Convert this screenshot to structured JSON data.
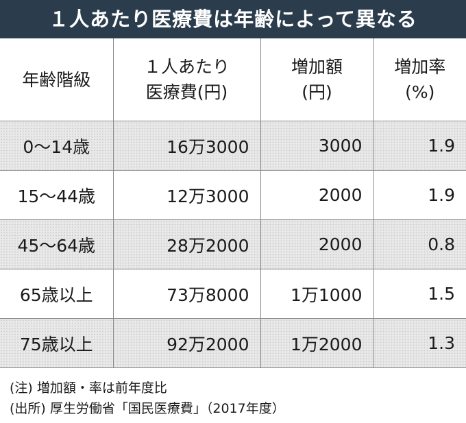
{
  "title": "１人あたり医療費は年齢によって異なる",
  "table": {
    "headers": [
      {
        "line1": "年齢階級",
        "line2": ""
      },
      {
        "line1": "１人あたり",
        "line2": "医療費(円)"
      },
      {
        "line1": "増加額",
        "line2": "(円)"
      },
      {
        "line1": "増加率",
        "line2": "(%)"
      }
    ],
    "rows": [
      {
        "age": "0～14歳",
        "cost": "16万3000",
        "increase": "3000",
        "rate": "1.9"
      },
      {
        "age": "15～44歳",
        "cost": "12万3000",
        "increase": "2000",
        "rate": "1.9"
      },
      {
        "age": "45～64歳",
        "cost": "28万2000",
        "increase": "2000",
        "rate": "0.8"
      },
      {
        "age": "65歳以上",
        "cost": "73万8000",
        "increase": "1万1000",
        "rate": "1.5"
      },
      {
        "age": "75歳以上",
        "cost": "92万2000",
        "increase": "1万2000",
        "rate": "1.3"
      }
    ]
  },
  "notes": {
    "note": "(注) 増加額・率は前年度比",
    "source": "(出所) 厚生労働省「国民医療費」（2017年度）"
  },
  "colors": {
    "title_background": "#2b3d4d",
    "title_text": "#ffffff",
    "shaded_row": "#e9e9e9",
    "rule": "#8a8a8a"
  }
}
